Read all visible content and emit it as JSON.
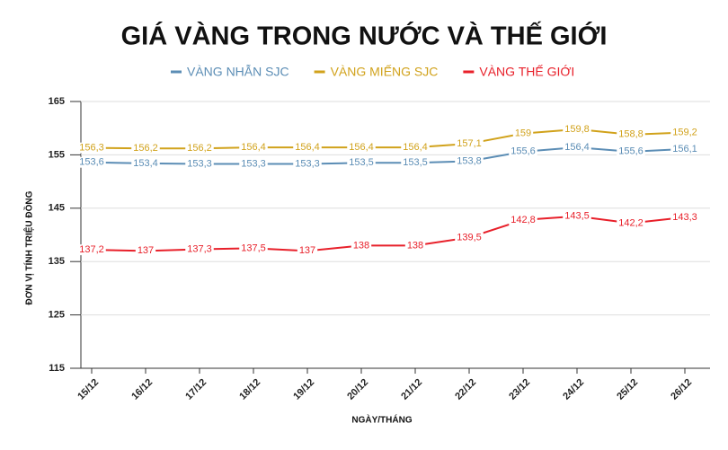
{
  "chart_data": {
    "type": "line",
    "title": "GIÁ VÀNG TRONG NƯỚC VÀ THẾ GIỚI",
    "y_label": "ĐƠN VỊ TÍNH TRIỆU ĐỒNG",
    "x_label": "NGÀY/THÁNG",
    "categories": [
      "15/12",
      "16/12",
      "17/12",
      "18/12",
      "19/12",
      "20/12",
      "21/12",
      "22/12",
      "23/12",
      "24/12",
      "25/12",
      "26/12"
    ],
    "series": [
      {
        "name": "VÀNG NHẪN SJC",
        "color": "#5b8db5",
        "values": [
          153.6,
          153.4,
          153.3,
          153.3,
          153.3,
          153.5,
          153.5,
          153.8,
          155.6,
          156.4,
          155.6,
          156.1
        ],
        "value_labels": [
          "153,6",
          "153,4",
          "153,3",
          "153,3",
          "153,3",
          "153,5",
          "153,5",
          "153,8",
          "155,6",
          "156,4",
          "155,6",
          "156,1"
        ]
      },
      {
        "name": "VÀNG MIẾNG SJC",
        "color": "#d1a21b",
        "values": [
          156.3,
          156.2,
          156.2,
          156.4,
          156.4,
          156.4,
          156.4,
          157.1,
          159,
          159.8,
          158.8,
          159.2
        ],
        "value_labels": [
          "156,3",
          "156,2",
          "156,2",
          "156,4",
          "156,4",
          "156,4",
          "156,4",
          "157,1",
          "159",
          "159,8",
          "158,8",
          "159,2"
        ]
      },
      {
        "name": "VÀNG THẾ GIỚI",
        "color": "#e8202a",
        "values": [
          137.2,
          137,
          137.3,
          137.5,
          137,
          138,
          138,
          139.5,
          142.8,
          143.5,
          142.2,
          143.3
        ],
        "value_labels": [
          "137,2",
          "137",
          "137,3",
          "137,5",
          "137",
          "138",
          "138",
          "139,5",
          "142,8",
          "143,5",
          "142,2",
          "143,3"
        ]
      }
    ],
    "ylim": [
      115,
      165
    ],
    "yticks": [
      115,
      125,
      135,
      145,
      155,
      165
    ],
    "grid": true,
    "legend": "top"
  }
}
